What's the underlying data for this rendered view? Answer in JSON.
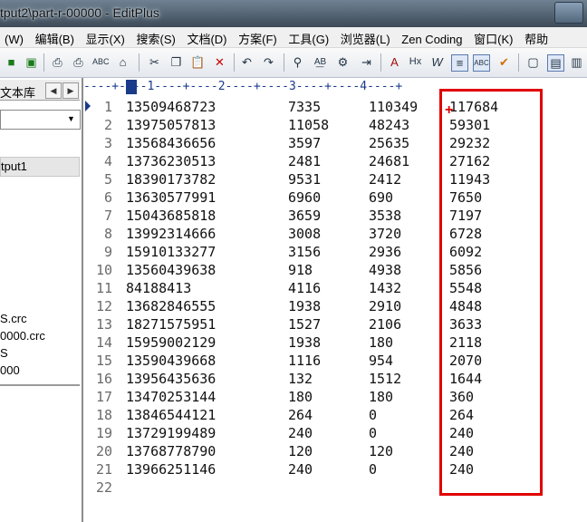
{
  "window": {
    "title": "tput2\\part-r-00000 - EditPlus"
  },
  "menu": {
    "items": [
      "(W)",
      "编辑(B)",
      "显示(X)",
      "搜索(S)",
      "文档(D)",
      "方案(F)",
      "工具(G)",
      "浏览器(L)",
      "Zen Coding",
      "窗口(K)",
      "帮助"
    ]
  },
  "left_panel": {
    "tab_label": "文本库",
    "selected_item": "tput1",
    "files": [
      "S.crc",
      "0000.crc",
      "S",
      "000"
    ]
  },
  "editor": {
    "ruler": "----+----1----+----2----+----3----+----4----+",
    "rows": [
      {
        "n": "1",
        "c1": "13509468723",
        "c2": "7335",
        "c3": "110349",
        "c4": "117684"
      },
      {
        "n": "2",
        "c1": "13975057813",
        "c2": "11058",
        "c3": "48243",
        "c4": "59301"
      },
      {
        "n": "3",
        "c1": "13568436656",
        "c2": "3597",
        "c3": "25635",
        "c4": "29232"
      },
      {
        "n": "4",
        "c1": "13736230513",
        "c2": "2481",
        "c3": "24681",
        "c4": "27162"
      },
      {
        "n": "5",
        "c1": "18390173782",
        "c2": "9531",
        "c3": "2412",
        "c4": "11943"
      },
      {
        "n": "6",
        "c1": "13630577991",
        "c2": "6960",
        "c3": "690",
        "c4": "7650"
      },
      {
        "n": "7",
        "c1": "15043685818",
        "c2": "3659",
        "c3": "3538",
        "c4": "7197"
      },
      {
        "n": "8",
        "c1": "13992314666",
        "c2": "3008",
        "c3": "3720",
        "c4": "6728"
      },
      {
        "n": "9",
        "c1": "15910133277",
        "c2": "3156",
        "c3": "2936",
        "c4": "6092"
      },
      {
        "n": "10",
        "c1": "13560439638",
        "c2": "918",
        "c3": "4938",
        "c4": "5856"
      },
      {
        "n": "11",
        "c1": "84188413",
        "c2": "4116",
        "c3": "1432",
        "c4": "5548"
      },
      {
        "n": "12",
        "c1": "13682846555",
        "c2": "1938",
        "c3": "2910",
        "c4": "4848"
      },
      {
        "n": "13",
        "c1": "18271575951",
        "c2": "1527",
        "c3": "2106",
        "c4": "3633"
      },
      {
        "n": "14",
        "c1": "15959002129",
        "c2": "1938",
        "c3": "180",
        "c4": "2118"
      },
      {
        "n": "15",
        "c1": "13590439668",
        "c2": "1116",
        "c3": "954",
        "c4": "2070"
      },
      {
        "n": "16",
        "c1": "13956435636",
        "c2": "132",
        "c3": "1512",
        "c4": "1644"
      },
      {
        "n": "17",
        "c1": "13470253144",
        "c2": "180",
        "c3": "180",
        "c4": "360"
      },
      {
        "n": "18",
        "c1": "13846544121",
        "c2": "264",
        "c3": "0",
        "c4": "264"
      },
      {
        "n": "19",
        "c1": "13729199489",
        "c2": "240",
        "c3": "0",
        "c4": "240"
      },
      {
        "n": "20",
        "c1": "13768778790",
        "c2": "120",
        "c3": "120",
        "c4": "240"
      },
      {
        "n": "21",
        "c1": "13966251146",
        "c2": "240",
        "c3": "0",
        "c4": "240"
      },
      {
        "n": "22",
        "c1": "",
        "c2": "",
        "c3": "",
        "c4": ""
      }
    ]
  },
  "colors": {
    "highlight": "#e00000",
    "ruler": "#1a3a8a"
  }
}
